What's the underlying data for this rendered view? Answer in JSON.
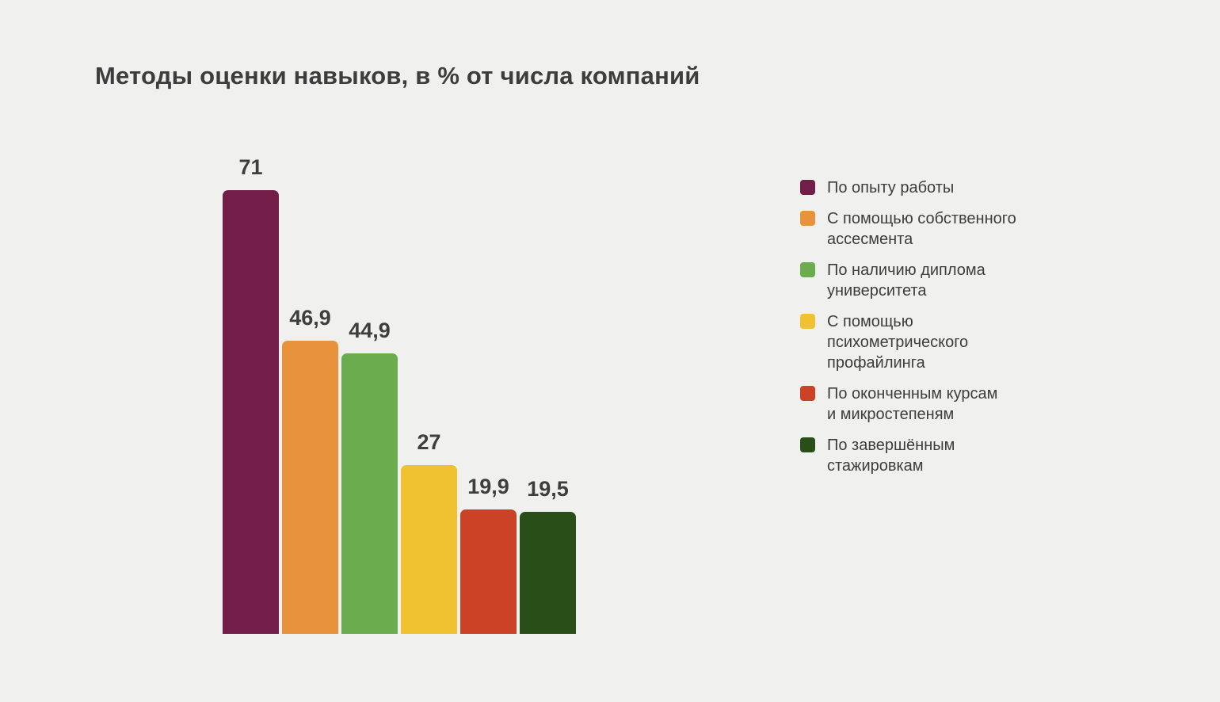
{
  "chart_data": {
    "type": "bar",
    "title": "Методы оценки навыков, в % от числа компаний",
    "xlabel": "",
    "ylabel": "",
    "ylim": [
      0,
      71
    ],
    "grid": false,
    "legend_position": "right",
    "value_unit": "%",
    "categories": [
      "По опыту работы",
      "С помощью собственного ассесмента",
      "По наличию диплома университета",
      "С помощью психометрического профайлинга",
      "По оконченным курсам и микростепеням",
      "По завершённым стажировкам"
    ],
    "values": [
      71,
      46.9,
      44.9,
      27,
      19.9,
      19.5
    ],
    "value_labels": [
      "71",
      "46,9",
      "44,9",
      "27",
      "19,9",
      "19,5"
    ],
    "colors": [
      "#721E48",
      "#E8923B",
      "#6AAC4E",
      "#F0C232",
      "#CB4226",
      "#2A4E17"
    ],
    "legend_labels": [
      "По опыту работы",
      "С помощью собственного\nассесмента",
      "По наличию диплома\nуниверситета",
      "С помощью\nпсихометрического\nпрофайлинга",
      "По оконченным курсам\nи микростепеням",
      "По завершённым\nстажировкам"
    ],
    "background_color": "#F0F0EF",
    "text_color": "#3D3D3D"
  }
}
